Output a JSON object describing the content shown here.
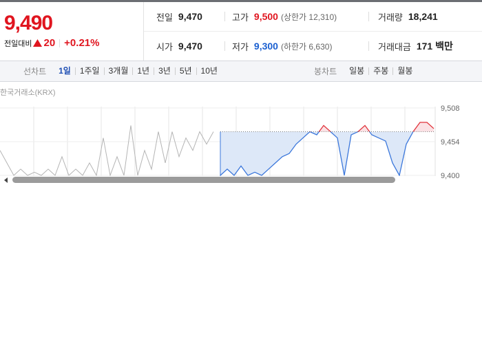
{
  "quote": {
    "price": "9,490",
    "change_label": "전일대비",
    "change": "20",
    "change_rate": "+0.21%"
  },
  "summary": [
    {
      "label": "전일",
      "value": "9,470"
    },
    {
      "label": "고가",
      "value": "9,500",
      "sub": "(상한가 12,310)"
    },
    {
      "label": "거래량",
      "value": "18,241"
    },
    {
      "label": "시가",
      "value": "9,470"
    },
    {
      "label": "저가",
      "value": "9,300",
      "sub": "(하한가 6,630)"
    },
    {
      "label": "거래대금",
      "value": "171 백만"
    }
  ],
  "tabs": {
    "line_chart": {
      "label": "선차트",
      "options": [
        "1일",
        "1주일",
        "3개월",
        "1년",
        "3년",
        "5년",
        "10년"
      ]
    },
    "candle_chart": {
      "label": "봉차트",
      "options": [
        "일봉",
        "주봉",
        "월봉"
      ]
    }
  },
  "chart": {
    "type": "line",
    "source": "한국거래소(KRX)",
    "ylim": [
      9400,
      9508
    ],
    "yticks": [
      {
        "value": 9508,
        "label": "9,508"
      },
      {
        "value": 9454,
        "label": "9,454"
      },
      {
        "value": 9400,
        "label": "9,400"
      }
    ],
    "reference": 9470,
    "series": [
      {
        "color": "#b4b4b4",
        "values": [
          9440,
          9420,
          9400,
          9410,
          9400,
          9405,
          9400,
          9410,
          9400,
          9430,
          9400,
          9410,
          9400,
          9420,
          9400,
          9460,
          9400,
          9430,
          9400,
          9480,
          9400,
          9440,
          9410,
          9470,
          9420,
          9470,
          9430,
          9460,
          9440,
          9470,
          9450,
          9470,
          null,
          null,
          null,
          null,
          null,
          null,
          null,
          null,
          null,
          null,
          null,
          null,
          null,
          null,
          null,
          null,
          null,
          null,
          null,
          null,
          null,
          null,
          null,
          null,
          null,
          null,
          null,
          null,
          null,
          null,
          null,
          null
        ]
      },
      {
        "color": "#3b77db",
        "up_color": "#e0323a",
        "values": [
          null,
          null,
          null,
          null,
          null,
          null,
          null,
          null,
          null,
          null,
          null,
          null,
          null,
          null,
          null,
          null,
          null,
          null,
          null,
          null,
          null,
          null,
          null,
          null,
          null,
          null,
          null,
          null,
          null,
          null,
          null,
          null,
          9400,
          9410,
          9400,
          9415,
          9400,
          9405,
          9400,
          9410,
          9420,
          9430,
          9435,
          9450,
          9460,
          9470,
          9465,
          9480,
          9470,
          9460,
          9400,
          9465,
          9470,
          9480,
          9465,
          9460,
          9455,
          9420,
          9400,
          9450,
          9470,
          9485,
          9485,
          9475
        ]
      }
    ]
  }
}
